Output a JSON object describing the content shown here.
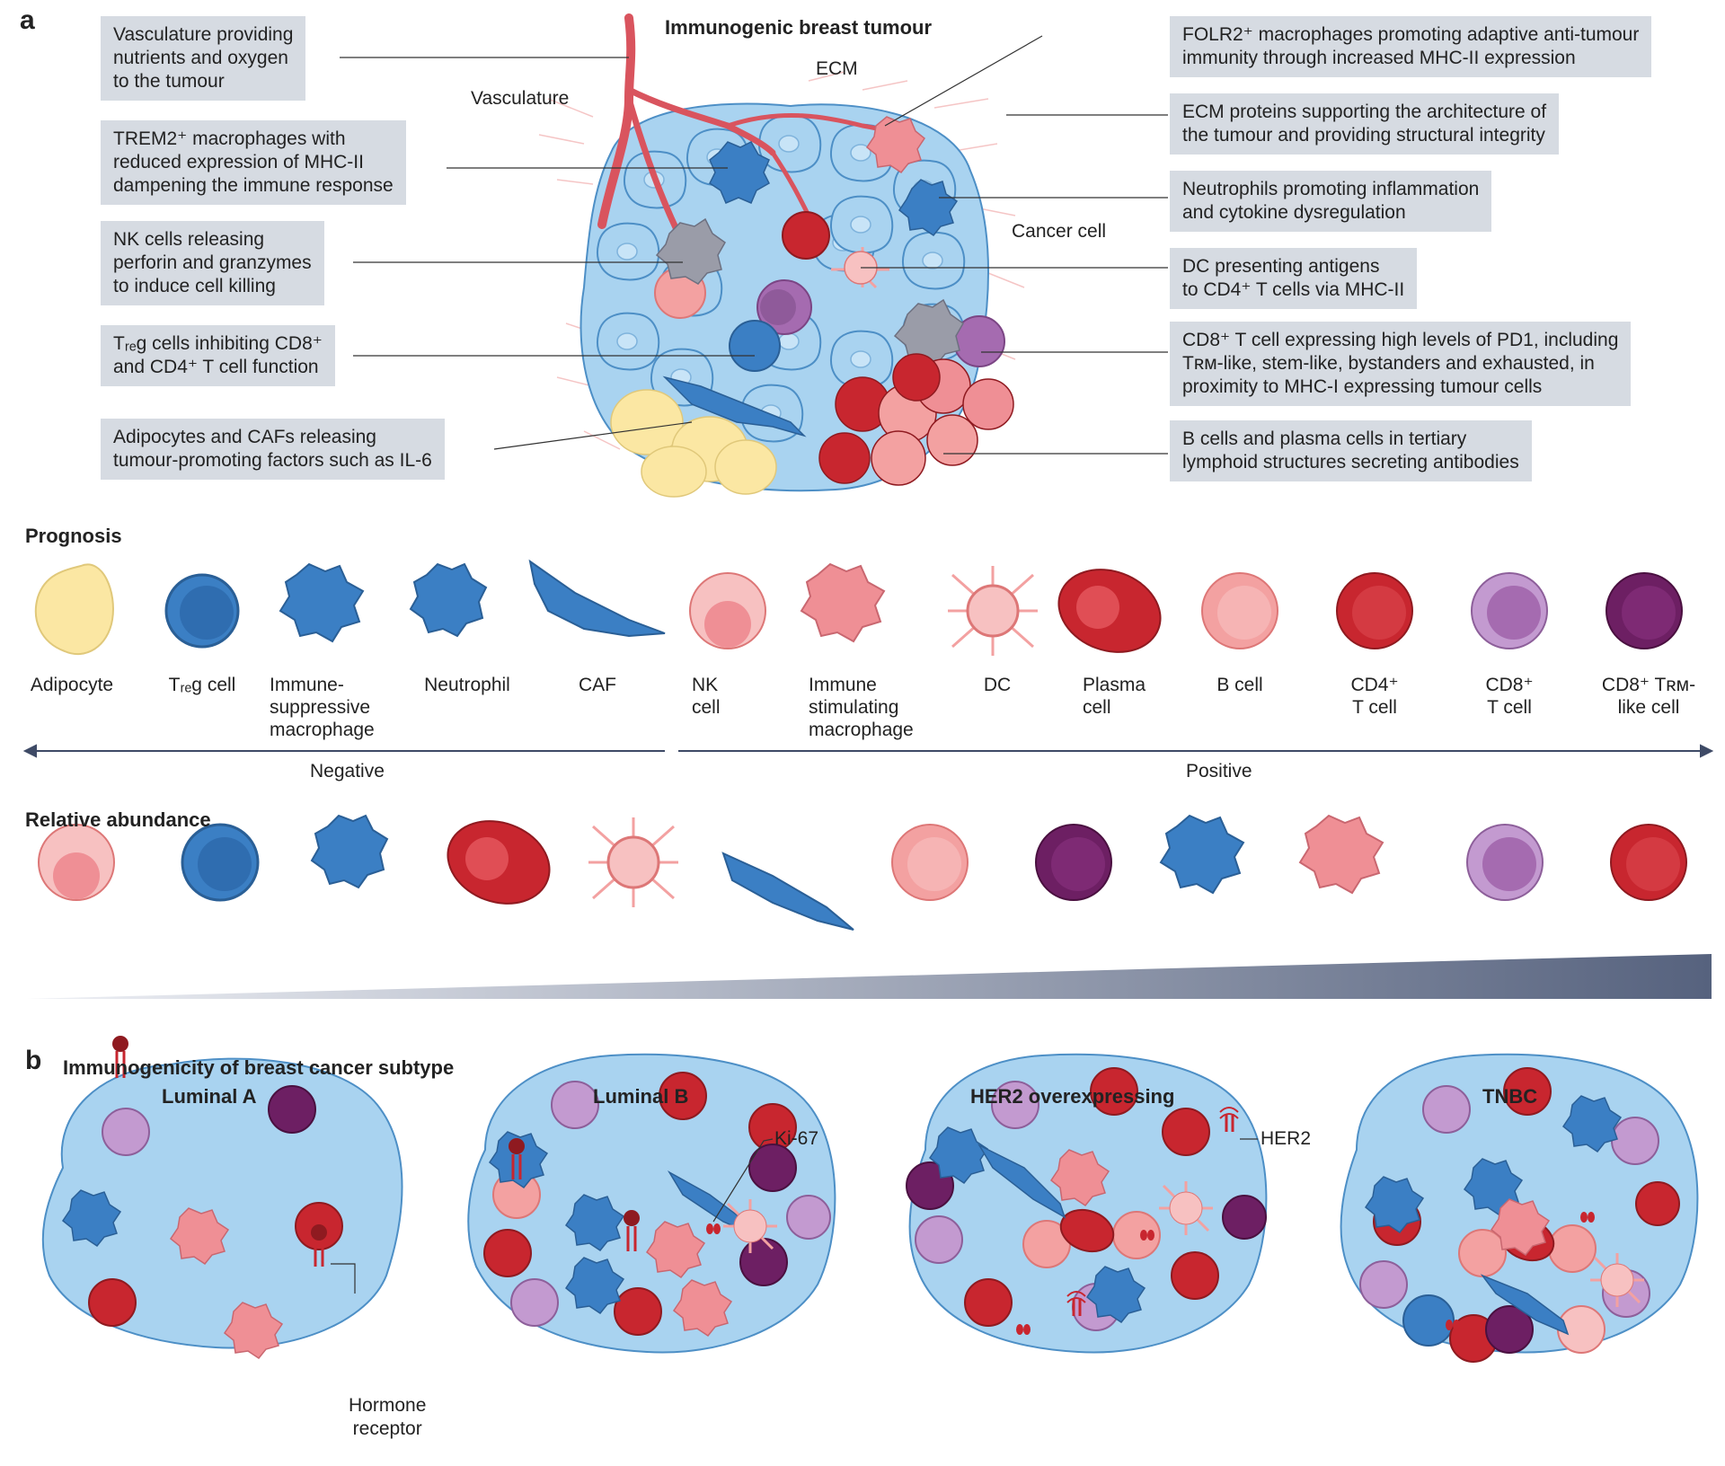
{
  "panel_a": {
    "letter": "a",
    "title": "Immunogenic breast tumour",
    "tumour_labels": {
      "vasculature": "Vasculature",
      "ecm": "ECM",
      "cancer_cell": "Cancer cell"
    },
    "left_labels": [
      {
        "lines": [
          "Vasculature providing",
          "nutrients and oxygen",
          "to the tumour"
        ]
      },
      {
        "lines": [
          "TREM2⁺ macrophages with",
          "reduced expression of MHC-II",
          "dampening the immune response"
        ]
      },
      {
        "lines": [
          "NK cells releasing",
          "perforin and granzymes",
          "to induce cell killing"
        ]
      },
      {
        "lines": [
          "Tᵣₑg cells inhibiting CD8⁺",
          "and CD4⁺ T cell function"
        ]
      },
      {
        "lines": [
          "Adipocytes and CAFs releasing",
          "tumour-promoting factors such as IL-6"
        ]
      }
    ],
    "right_labels": [
      {
        "lines": [
          "FOLR2⁺ macrophages promoting adaptive anti-tumour",
          "immunity through increased MHC-II expression"
        ]
      },
      {
        "lines": [
          "ECM proteins supporting the architecture of",
          "the tumour and providing structural integrity"
        ]
      },
      {
        "lines": [
          "Neutrophils promoting inflammation",
          "and cytokine dysregulation"
        ]
      },
      {
        "lines": [
          "DC presenting antigens",
          "to CD4⁺ T cells via MHC-II"
        ]
      },
      {
        "lines": [
          "CD8⁺ T cell expressing high levels of PD1, including",
          "Tʀᴍ-like, stem-like, bystanders and exhausted, in",
          "proximity to MHC-I expressing tumour cells"
        ]
      },
      {
        "lines": [
          "B cells and plasma cells in tertiary",
          "lymphoid structures secreting antibodies"
        ]
      }
    ]
  },
  "prognosis": {
    "title": "Prognosis",
    "cells": [
      {
        "line1": "Adipocyte",
        "line2": "",
        "line3": ""
      },
      {
        "line1": "Tᵣₑg cell",
        "line2": "",
        "line3": ""
      },
      {
        "line1": "Immune-",
        "line2": "suppressive",
        "line3": "macrophage"
      },
      {
        "line1": "Neutrophil",
        "line2": "",
        "line3": ""
      },
      {
        "line1": "CAF",
        "line2": "",
        "line3": ""
      },
      {
        "line1": "NK",
        "line2": "cell",
        "line3": ""
      },
      {
        "line1": "Immune",
        "line2": "stimulating",
        "line3": "macrophage"
      },
      {
        "line1": "DC",
        "line2": "",
        "line3": ""
      },
      {
        "line1": "Plasma",
        "line2": "cell",
        "line3": ""
      },
      {
        "line1": "B cell",
        "line2": "",
        "line3": ""
      },
      {
        "line1": "CD4⁺",
        "line2": "T cell",
        "line3": ""
      },
      {
        "line1": "CD8⁺",
        "line2": "T cell",
        "line3": ""
      },
      {
        "line1": "CD8⁺ Tʀᴍ-",
        "line2": "like cell",
        "line3": ""
      }
    ],
    "negative_label": "Negative",
    "positive_label": "Positive"
  },
  "relative_abundance": {
    "title": "Relative abundance",
    "order": [
      "NK cell",
      "Treg cell",
      "Neutrophil",
      "Plasma cell",
      "DC",
      "CAF",
      "B cell",
      "CD8+ TRM-like cell",
      "Immune-suppressive macrophage",
      "Immune stimulating macrophage",
      "CD8+ T cell",
      "CD4+ T cell"
    ]
  },
  "panel_b": {
    "letter": "b",
    "title": "Immunogenicity of breast cancer subtype",
    "subtypes": [
      {
        "name": "Luminal A"
      },
      {
        "name": "Luminal B"
      },
      {
        "name": "HER2 overexpressing"
      },
      {
        "name": "TNBC"
      }
    ],
    "callouts": {
      "hormone_receptor_1": "Hormone",
      "hormone_receptor_2": "receptor",
      "ki67": "Ki-67",
      "her2": "HER2"
    }
  },
  "colors": {
    "label_box": "#d6dbe2",
    "cancer_cell": "#a9d3f0",
    "blue_cell": "#3b7fc4",
    "red_cell": "#c8262f",
    "pink_cell": "#f3a1a1",
    "purple_cell": "#a56bb0",
    "dark_purple_cell": "#6d1f63",
    "adipocyte": "#fbe7a3",
    "vessel": "#d9545e",
    "arrow": "#3e4a66"
  }
}
